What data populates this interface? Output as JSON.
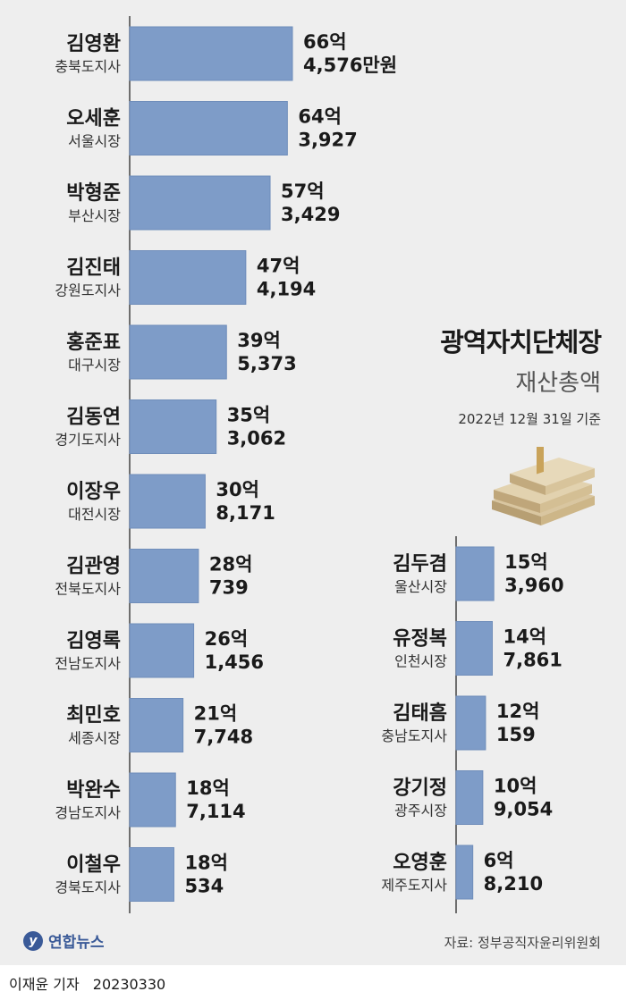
{
  "title": {
    "line1": "광역자치단체장",
    "line2": "재산총액"
  },
  "as_of": "2022년 12월 31일 기준",
  "source": "자료: 정부공직자윤리위원회",
  "logo": "연합뉴스",
  "reporter": "이재윤 기자",
  "date_code": "20230330",
  "colors": {
    "bar": "#7e9cc8",
    "bar_stroke": "#6f8dba",
    "axis": "#444444",
    "panel": "#eeeeee"
  },
  "chart_data": {
    "type": "bar",
    "unit_note": "억원",
    "series": [
      {
        "name": "김영환",
        "office": "충북도지사",
        "value": 66.4576,
        "label_1": "66억",
        "label_2": "4,576만원"
      },
      {
        "name": "오세훈",
        "office": "서울시장",
        "value": 64.3927,
        "label_1": "64억",
        "label_2": "3,927"
      },
      {
        "name": "박형준",
        "office": "부산시장",
        "value": 57.3429,
        "label_1": "57억",
        "label_2": "3,429"
      },
      {
        "name": "김진태",
        "office": "강원도지사",
        "value": 47.4194,
        "label_1": "47억",
        "label_2": "4,194"
      },
      {
        "name": "홍준표",
        "office": "대구시장",
        "value": 39.5373,
        "label_1": "39억",
        "label_2": "5,373"
      },
      {
        "name": "김동연",
        "office": "경기도지사",
        "value": 35.3062,
        "label_1": "35억",
        "label_2": "3,062"
      },
      {
        "name": "이장우",
        "office": "대전시장",
        "value": 30.8171,
        "label_1": "30억",
        "label_2": "8,171"
      },
      {
        "name": "김관영",
        "office": "전북도지사",
        "value": 28.0739,
        "label_1": "28억",
        "label_2": "739"
      },
      {
        "name": "김영록",
        "office": "전남도지사",
        "value": 26.1456,
        "label_1": "26억",
        "label_2": "1,456"
      },
      {
        "name": "최민호",
        "office": "세종시장",
        "value": 21.7748,
        "label_1": "21억",
        "label_2": "7,748"
      },
      {
        "name": "박완수",
        "office": "경남도지사",
        "value": 18.7114,
        "label_1": "18억",
        "label_2": "7,114"
      },
      {
        "name": "이철우",
        "office": "경북도지사",
        "value": 18.0534,
        "label_1": "18억",
        "label_2": "534"
      },
      {
        "name": "김두겸",
        "office": "울산시장",
        "value": 15.396,
        "label_1": "15억",
        "label_2": "3,960"
      },
      {
        "name": "유정복",
        "office": "인천시장",
        "value": 14.7861,
        "label_1": "14억",
        "label_2": "7,861"
      },
      {
        "name": "김태흠",
        "office": "충남도지사",
        "value": 12.0159,
        "label_1": "12억",
        "label_2": "159"
      },
      {
        "name": "강기정",
        "office": "광주시장",
        "value": 10.9054,
        "label_1": "10억",
        "label_2": "9,054"
      },
      {
        "name": "오영훈",
        "office": "제주도지사",
        "value": 6.821,
        "label_1": "6억",
        "label_2": "8,210"
      }
    ]
  }
}
